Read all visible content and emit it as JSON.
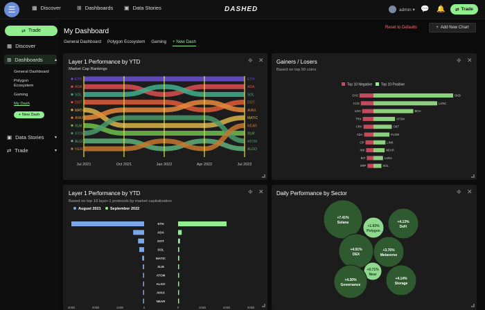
{
  "topbar": {
    "nav": [
      {
        "label": "Discover",
        "icon": "map-icon"
      },
      {
        "label": "Dashboards",
        "icon": "grid-icon"
      },
      {
        "label": "Data Stories",
        "icon": "image-icon"
      }
    ],
    "logo": "DASHED",
    "user": "admin",
    "trade": "Trade"
  },
  "sidebar": {
    "trade": "Trade",
    "discover": "Discover",
    "dashboards": "Dashboards",
    "sub": [
      "General Dashboard",
      "Polygon Ecosystem",
      "Gaming",
      "My Dash"
    ],
    "new_dash": "New Dash",
    "data_stories": "Data Stories",
    "trade_item": "Trade"
  },
  "main": {
    "title": "My Dashboard",
    "reset": "Reset to Defaults",
    "add_chart": "Add New Chart",
    "tabs": [
      "General Dashboard",
      "Polygon Ecosystem",
      "Gaming",
      "+ New Dash"
    ]
  },
  "colors": {
    "accent": "#90ee90",
    "panel": "#1c1c1c",
    "danger": "#ff6f6f"
  },
  "chart_data": [
    {
      "type": "line",
      "title": "Layer 1 Performance by YTD",
      "subtitle": "Market Cap Rankings",
      "x": [
        "Jul 2021",
        "Oct 2021",
        "Jan 2022",
        "Apr 2022",
        "Jul 2022"
      ],
      "left_labels": [
        "ETH",
        "ADA",
        "SOL",
        "DOT",
        "MATIC",
        "AVAX",
        "XLM",
        "ATOM",
        "ALGO",
        "NEAR"
      ],
      "right_labels": [
        "ETH",
        "ADA",
        "SOL",
        "DOT",
        "AVAX",
        "MATIC",
        "NEAR",
        "XLM",
        "ATOM",
        "ALGO"
      ],
      "series": [
        {
          "name": "ETH",
          "color": "#6b4fd8",
          "values": [
            1,
            1,
            1,
            1,
            1
          ]
        },
        {
          "name": "ADA",
          "color": "#d94f4f",
          "values": [
            2,
            2,
            3,
            2,
            2
          ]
        },
        {
          "name": "SOL",
          "color": "#3fae8c",
          "values": [
            3,
            3,
            2,
            3,
            3
          ]
        },
        {
          "name": "DOT",
          "color": "#e05c3a",
          "values": [
            4,
            4,
            4,
            5,
            4
          ]
        },
        {
          "name": "MATIC",
          "color": "#d9b44a",
          "values": [
            5,
            7,
            7,
            7,
            6
          ]
        },
        {
          "name": "AVAX",
          "color": "#e58a3a",
          "values": [
            6,
            5,
            5,
            4,
            5
          ]
        },
        {
          "name": "XLM",
          "color": "#6fc04a",
          "values": [
            7,
            8,
            8,
            8,
            8
          ]
        },
        {
          "name": "ATOM",
          "color": "#4a9a6a",
          "values": [
            8,
            6,
            6,
            6,
            9
          ]
        },
        {
          "name": "ALGO",
          "color": "#5fb07a",
          "values": [
            9,
            9,
            10,
            9,
            10
          ]
        },
        {
          "name": "NEAR",
          "color": "#c4782f",
          "values": [
            10,
            10,
            9,
            10,
            7
          ]
        }
      ],
      "ylim": [
        1,
        10
      ]
    },
    {
      "type": "bar",
      "title": "Gainers / Losers",
      "subtitle": "Based on top 50 coins",
      "legend": [
        "Top 10 Negative",
        "Top 10 Positive"
      ],
      "negative": [
        {
          "label": "CHZ",
          "value": 21
        },
        {
          "label": "CCD",
          "value": 19
        },
        {
          "label": "LDO",
          "value": 17
        },
        {
          "label": "TRX",
          "value": 16
        },
        {
          "label": "CRV",
          "value": 15
        },
        {
          "label": "ADA",
          "value": 14
        },
        {
          "label": "OP",
          "value": 12
        },
        {
          "label": "INX",
          "value": 11
        },
        {
          "label": "BIT",
          "value": 10
        },
        {
          "label": "XRP",
          "value": 9
        }
      ],
      "positive": [
        {
          "label": "OKB",
          "value": 100
        },
        {
          "label": "LUNC",
          "value": 80
        },
        {
          "label": "BCH",
          "value": 50
        },
        {
          "label": "ATOM",
          "value": 27
        },
        {
          "label": "OKT",
          "value": 23
        },
        {
          "label": "FLOW",
          "value": 20
        },
        {
          "label": "LINK",
          "value": 15
        },
        {
          "label": "NEAR",
          "value": 14
        },
        {
          "label": "LUNA",
          "value": 12
        },
        {
          "label": "SOL",
          "value": 10
        }
      ]
    },
    {
      "type": "bar",
      "title": "Layer 1 Performance by YTD",
      "subtitle": "Based on top 10 layer-1 protocols by market capitalization",
      "legend": [
        "August 2021",
        "September 2022"
      ],
      "categories": [
        "ETH",
        "ADA",
        "DOT",
        "SOL",
        "MATIC",
        "XLM",
        "ATOM",
        "ALGO",
        "AVAX",
        "NEAR"
      ],
      "series": [
        {
          "name": "August 2021",
          "color": "#7aa7ec",
          "values": [
            300,
            45,
            25,
            20,
            8,
            5,
            4,
            4,
            3,
            2
          ]
        },
        {
          "name": "September 2022",
          "color": "#90ee90",
          "values": [
            200,
            15,
            8,
            5,
            5,
            3,
            3,
            2,
            4,
            2
          ]
        }
      ],
      "ticks_left": [
        "300B",
        "200B",
        "100B",
        "0"
      ],
      "ticks_right": [
        "0",
        "100B",
        "200B",
        "300B"
      ]
    },
    {
      "type": "bubble",
      "title": "Daily Performance by Sector",
      "bubbles": [
        {
          "name": "Solana",
          "value": "+7.41%",
          "r": 28
        },
        {
          "name": "Polygon",
          "value": "+1.93%",
          "r": 15
        },
        {
          "name": "DeFi",
          "value": "+4.13%",
          "r": 22
        },
        {
          "name": "DEX",
          "value": "+4.91%",
          "r": 25
        },
        {
          "name": "Metaverse",
          "value": "+3.76%",
          "r": 22
        },
        {
          "name": "Near",
          "value": "+0.71%",
          "r": 13
        },
        {
          "name": "Governance",
          "value": "+4.30%",
          "r": 24
        },
        {
          "name": "Storage",
          "value": "+4.14%",
          "r": 22
        }
      ]
    }
  ]
}
